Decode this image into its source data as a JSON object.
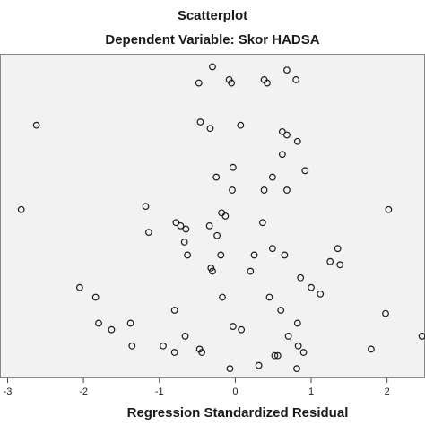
{
  "chart_data": {
    "type": "scatter",
    "title": "Scatterplot",
    "subtitle": "Dependent Variable: Skor HADSA",
    "xlabel": "Regression Standardized Residual",
    "ylabel": "",
    "xlim": [
      -3.1,
      2.5
    ],
    "ylim": [
      0,
      100
    ],
    "xticks": [
      -3,
      -2,
      -1,
      0,
      1,
      2
    ],
    "xtick_labels": [
      "-3",
      "-2",
      "-1",
      "0",
      "1",
      "2"
    ],
    "yticks": [],
    "grid": false,
    "legend": "none",
    "colors": {
      "background": "#f2f2f2",
      "marker": "#1a1a1a",
      "frame": "#888888"
    },
    "points": [
      {
        "x": -0.3,
        "y": 96
      },
      {
        "x": -0.48,
        "y": 91
      },
      {
        "x": -0.08,
        "y": 92
      },
      {
        "x": -0.05,
        "y": 91
      },
      {
        "x": 0.38,
        "y": 92
      },
      {
        "x": 0.42,
        "y": 91
      },
      {
        "x": 0.8,
        "y": 92
      },
      {
        "x": 0.68,
        "y": 95
      },
      {
        "x": -2.62,
        "y": 78
      },
      {
        "x": -0.46,
        "y": 79
      },
      {
        "x": -0.33,
        "y": 77
      },
      {
        "x": 0.07,
        "y": 78
      },
      {
        "x": 0.62,
        "y": 76
      },
      {
        "x": 0.68,
        "y": 75
      },
      {
        "x": 0.82,
        "y": 73
      },
      {
        "x": 0.62,
        "y": 69
      },
      {
        "x": -0.03,
        "y": 65
      },
      {
        "x": 0.92,
        "y": 64
      },
      {
        "x": -0.25,
        "y": 62
      },
      {
        "x": 0.49,
        "y": 62
      },
      {
        "x": 0.38,
        "y": 58
      },
      {
        "x": -0.04,
        "y": 58
      },
      {
        "x": 0.68,
        "y": 58
      },
      {
        "x": -2.82,
        "y": 52
      },
      {
        "x": -1.18,
        "y": 53
      },
      {
        "x": -0.13,
        "y": 50
      },
      {
        "x": 0.36,
        "y": 48
      },
      {
        "x": 2.02,
        "y": 52
      },
      {
        "x": -0.18,
        "y": 51
      },
      {
        "x": -0.78,
        "y": 48
      },
      {
        "x": -0.65,
        "y": 46
      },
      {
        "x": -0.72,
        "y": 47
      },
      {
        "x": -0.34,
        "y": 47
      },
      {
        "x": -1.14,
        "y": 45
      },
      {
        "x": -0.24,
        "y": 44
      },
      {
        "x": -0.67,
        "y": 42
      },
      {
        "x": -0.63,
        "y": 38
      },
      {
        "x": -0.19,
        "y": 38
      },
      {
        "x": 0.25,
        "y": 38
      },
      {
        "x": 0.49,
        "y": 40
      },
      {
        "x": 0.65,
        "y": 38
      },
      {
        "x": 1.35,
        "y": 40
      },
      {
        "x": 1.25,
        "y": 36
      },
      {
        "x": 1.38,
        "y": 35
      },
      {
        "x": -0.32,
        "y": 34
      },
      {
        "x": -0.3,
        "y": 33
      },
      {
        "x": 0.2,
        "y": 33
      },
      {
        "x": 0.86,
        "y": 31
      },
      {
        "x": 1.0,
        "y": 28
      },
      {
        "x": 1.12,
        "y": 26
      },
      {
        "x": -2.05,
        "y": 28
      },
      {
        "x": -1.84,
        "y": 25
      },
      {
        "x": -0.17,
        "y": 25
      },
      {
        "x": 0.45,
        "y": 25
      },
      {
        "x": -0.8,
        "y": 21
      },
      {
        "x": 0.6,
        "y": 21
      },
      {
        "x": 1.98,
        "y": 20
      },
      {
        "x": -1.8,
        "y": 17
      },
      {
        "x": -1.63,
        "y": 15
      },
      {
        "x": -1.38,
        "y": 17
      },
      {
        "x": -0.03,
        "y": 16
      },
      {
        "x": 0.08,
        "y": 15
      },
      {
        "x": 0.82,
        "y": 17
      },
      {
        "x": 2.46,
        "y": 13
      },
      {
        "x": -0.66,
        "y": 13
      },
      {
        "x": 0.7,
        "y": 13
      },
      {
        "x": -1.36,
        "y": 10
      },
      {
        "x": -0.95,
        "y": 10
      },
      {
        "x": -0.8,
        "y": 8
      },
      {
        "x": -0.47,
        "y": 9
      },
      {
        "x": -0.44,
        "y": 8
      },
      {
        "x": 0.83,
        "y": 10
      },
      {
        "x": 0.9,
        "y": 8
      },
      {
        "x": 0.52,
        "y": 7
      },
      {
        "x": 0.56,
        "y": 7
      },
      {
        "x": 1.79,
        "y": 9
      },
      {
        "x": -0.07,
        "y": 3
      },
      {
        "x": 0.31,
        "y": 4
      },
      {
        "x": 0.81,
        "y": 3
      }
    ]
  }
}
